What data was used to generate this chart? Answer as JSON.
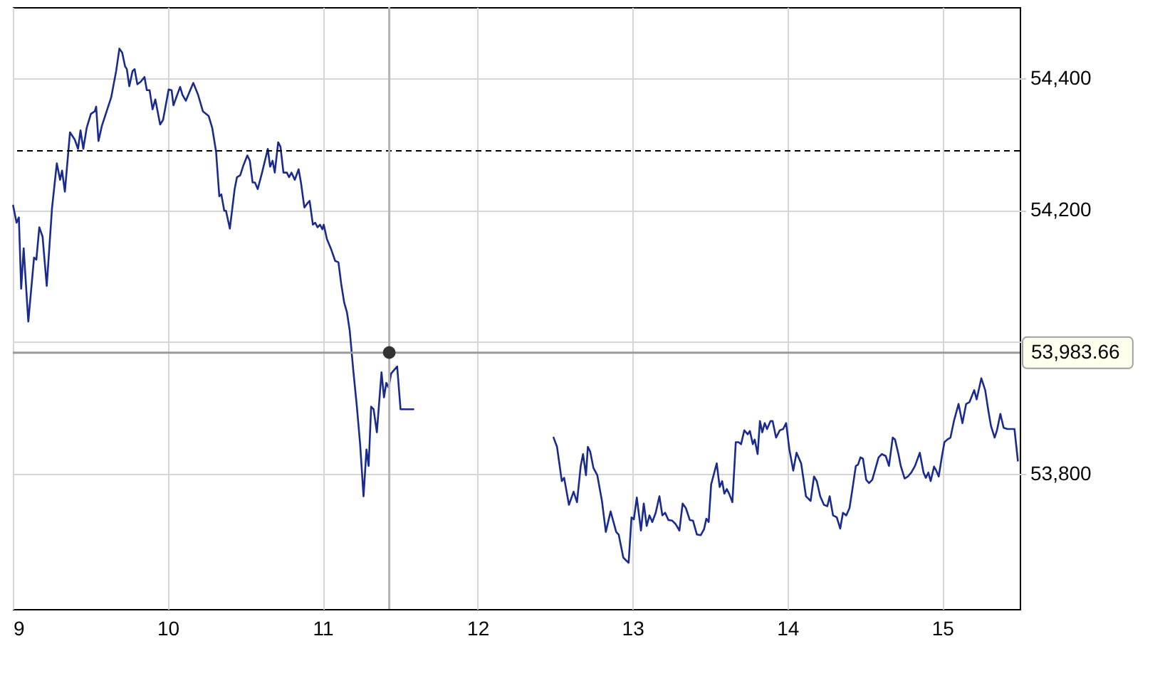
{
  "chart_data": {
    "type": "line",
    "xlim": [
      9,
      15.5
    ],
    "ylim": [
      53595,
      54508
    ],
    "xticks": [
      9,
      10,
      11,
      12,
      13,
      14,
      15
    ],
    "yticks": [
      {
        "value": 53800,
        "label": "53,800"
      },
      {
        "value": 54000,
        "label": null
      },
      {
        "value": 54200,
        "label": "54,200"
      },
      {
        "value": 54400,
        "label": "54,400"
      }
    ],
    "grid": true,
    "ref_lines": [
      {
        "axis": "y",
        "value": 54290,
        "color": "#000000",
        "line_style": "dashed"
      },
      {
        "axis": "x",
        "value": 11.43,
        "color": "#b4b4b4"
      },
      {
        "axis": "y",
        "value": 53983.66,
        "label": "53,983.66",
        "color": "#9a9a9a"
      }
    ],
    "series": [
      {
        "color": "#1a2b8f",
        "x": [
          9.002,
          9.024,
          9.039,
          9.054,
          9.07,
          9.1,
          9.137,
          9.152,
          9.171,
          9.192,
          9.219,
          9.253,
          9.284,
          9.305,
          9.318,
          9.336,
          9.369,
          9.4,
          9.421,
          9.437,
          9.455,
          9.477,
          9.504,
          9.529,
          9.538,
          9.553,
          9.575,
          9.596,
          9.635,
          9.667,
          9.688,
          9.706,
          9.725,
          9.736,
          9.752,
          9.773,
          9.786,
          9.804,
          9.826,
          9.85,
          9.865,
          9.883,
          9.902,
          9.92,
          9.951,
          9.97,
          10.006,
          10.025,
          10.037,
          10.055,
          10.08,
          10.095,
          10.117,
          10.165,
          10.196,
          10.227,
          10.264,
          10.287,
          10.312,
          10.333,
          10.346,
          10.365,
          10.376,
          10.401,
          10.432,
          10.447,
          10.468,
          10.487,
          10.514,
          10.53,
          10.548,
          10.563,
          10.581,
          10.609,
          10.646,
          10.661,
          10.677,
          10.691,
          10.713,
          10.728,
          10.747,
          10.769,
          10.783,
          10.799,
          10.82,
          10.845,
          10.86,
          10.882,
          10.9,
          10.916,
          10.937,
          10.952,
          10.967,
          10.983,
          10.998,
          11.007,
          11.028,
          11.053,
          11.081,
          11.102,
          11.12,
          11.139,
          11.157,
          11.175,
          11.197,
          11.221,
          11.242,
          11.264,
          11.283,
          11.297,
          11.313,
          11.329,
          11.35,
          11.38,
          11.396,
          11.411,
          11.426,
          11.442,
          11.481,
          11.503,
          11.586,
          12.0,
          12.491,
          12.513,
          12.544,
          12.559,
          12.59,
          12.62,
          12.642,
          12.666,
          12.681,
          12.7,
          12.712,
          12.727,
          12.748,
          12.773,
          12.803,
          12.828,
          12.859,
          12.895,
          12.911,
          12.941,
          12.975,
          12.994,
          13.009,
          13.028,
          13.055,
          13.073,
          13.092,
          13.11,
          13.128,
          13.15,
          13.174,
          13.193,
          13.211,
          13.232,
          13.257,
          13.278,
          13.303,
          13.324,
          13.345,
          13.37,
          13.391,
          13.416,
          13.441,
          13.462,
          13.477,
          13.492,
          13.508,
          13.544,
          13.563,
          13.579,
          13.593,
          13.609,
          13.624,
          13.645,
          13.667,
          13.685,
          13.701,
          13.722,
          13.744,
          13.758,
          13.777,
          13.789,
          13.808,
          13.823,
          13.838,
          13.854,
          13.869,
          13.891,
          13.905,
          13.927,
          13.951,
          13.973,
          13.992,
          14.013,
          14.038,
          14.059,
          14.089,
          14.12,
          14.15,
          14.172,
          14.19,
          14.212,
          14.236,
          14.258,
          14.273,
          14.295,
          14.319,
          14.341,
          14.359,
          14.38,
          14.401,
          14.42,
          14.442,
          14.456,
          14.472,
          14.488,
          14.509,
          14.527,
          14.548,
          14.57,
          14.589,
          14.61,
          14.635,
          14.656,
          14.68,
          14.695,
          14.717,
          14.732,
          14.757,
          14.778,
          14.8,
          14.824,
          14.855,
          14.879,
          14.894,
          14.91,
          14.925,
          14.947,
          14.961,
          14.977,
          14.998,
          15.014,
          15.032,
          15.053,
          15.075,
          15.105,
          15.13,
          15.154,
          15.176,
          15.206,
          15.222,
          15.252,
          15.277,
          15.298,
          15.314,
          15.338,
          15.353,
          15.375,
          15.396,
          15.42,
          15.466,
          15.488
        ],
        "values": [
          54207,
          54181,
          54189,
          54081,
          54142,
          54031,
          54128,
          54125,
          54174,
          54160,
          54085,
          54203,
          54271,
          54246,
          54260,
          54228,
          54318,
          54307,
          54293,
          54321,
          54293,
          54325,
          54346,
          54350,
          54357,
          54305,
          54328,
          54343,
          54371,
          54411,
          54445,
          54439,
          54418,
          54414,
          54388,
          54411,
          54414,
          54391,
          54395,
          54402,
          54382,
          54382,
          54353,
          54368,
          54330,
          54337,
          54383,
          54382,
          54359,
          54371,
          54387,
          54375,
          54366,
          54393,
          54375,
          54350,
          54343,
          54325,
          54289,
          54221,
          54224,
          54199,
          54199,
          54172,
          54232,
          54250,
          54253,
          54267,
          54283,
          54275,
          54242,
          54242,
          54232,
          54257,
          54293,
          54266,
          54275,
          54257,
          54303,
          54296,
          54257,
          54257,
          54250,
          54257,
          54246,
          54262,
          54242,
          54204,
          54210,
          54214,
          54178,
          54181,
          54174,
          54178,
          54171,
          54178,
          54156,
          54142,
          54123,
          54121,
          54088,
          54060,
          54045,
          54017,
          53959,
          53902,
          53845,
          53766,
          53837,
          53812,
          53902,
          53898,
          53863,
          53954,
          53916,
          53938,
          53931,
          53952,
          53963,
          53898,
          53898,
          null,
          53855,
          53841,
          53789,
          53794,
          53753,
          53773,
          53757,
          53812,
          53830,
          53798,
          53841,
          53834,
          53809,
          53798,
          53759,
          53712,
          53743,
          53712,
          53708,
          53673,
          53665,
          53734,
          53731,
          53764,
          53714,
          53755,
          53721,
          53737,
          53727,
          53741,
          53766,
          53737,
          53741,
          53730,
          53729,
          53724,
          53714,
          53755,
          53748,
          53730,
          53729,
          53708,
          53707,
          53716,
          53732,
          53727,
          53784,
          53816,
          53780,
          53789,
          53770,
          53777,
          53770,
          53757,
          53848,
          53848,
          53845,
          53866,
          53860,
          53865,
          53845,
          53852,
          53830,
          53880,
          53863,
          53877,
          53868,
          53880,
          53880,
          53855,
          53866,
          53868,
          53877,
          53837,
          53805,
          53832,
          53816,
          53766,
          53759,
          53796,
          53789,
          53766,
          53753,
          53751,
          53766,
          53737,
          53734,
          53717,
          53741,
          53737,
          53748,
          53777,
          53812,
          53814,
          53825,
          53823,
          53791,
          53786,
          53791,
          53809,
          53825,
          53830,
          53827,
          53812,
          53855,
          53852,
          53830,
          53812,
          53793,
          53796,
          53802,
          53812,
          53832,
          53802,
          53794,
          53802,
          53789,
          53811,
          53805,
          53796,
          53827,
          53848,
          53852,
          53855,
          53880,
          53906,
          53877,
          53906,
          53909,
          53927,
          53913,
          53945,
          53927,
          53895,
          53873,
          53855,
          53866,
          53891,
          53870,
          53868,
          53868,
          53820
        ]
      },
      {
        "type": "scatter",
        "color": "#333333",
        "x": [
          11.43
        ],
        "values": [
          53984
        ]
      }
    ]
  }
}
